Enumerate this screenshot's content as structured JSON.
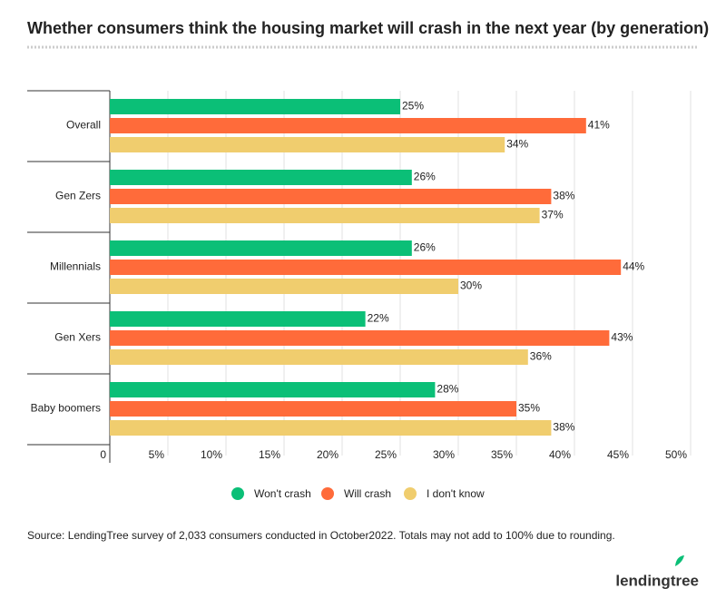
{
  "chart_data": {
    "type": "bar",
    "orientation": "horizontal",
    "title": "Whether consumers think the housing market will crash in the next year (by generation)",
    "categories": [
      "Overall",
      "Gen Zers",
      "Millennials",
      "Gen Xers",
      "Baby boomers"
    ],
    "series": [
      {
        "name": "Won't crash",
        "color": "#0bbf77",
        "values": [
          25,
          26,
          26,
          22,
          28
        ],
        "value_labels": [
          "25%",
          "26%",
          "26%",
          "22%",
          "28%"
        ]
      },
      {
        "name": "Will crash",
        "color": "#ff6b3a",
        "values": [
          41,
          38,
          44,
          43,
          35
        ],
        "value_labels": [
          "41%",
          "38%",
          "44%",
          "43%",
          "35%"
        ]
      },
      {
        "name": "I don't know",
        "color": "#f0cd6e",
        "values": [
          34,
          37,
          30,
          36,
          38
        ],
        "value_labels": [
          "34%",
          "37%",
          "30%",
          "36%",
          "38%"
        ]
      }
    ],
    "xlim": [
      0,
      50
    ],
    "xticks": [
      0,
      {
        "value": 5,
        "label": "5%"
      },
      {
        "value": 10,
        "label": "10%"
      },
      {
        "value": 15,
        "label": "15%"
      },
      {
        "value": 20,
        "label": "20%"
      },
      {
        "value": 25,
        "label": "25%"
      },
      {
        "value": 30,
        "label": "30%"
      },
      {
        "value": 35,
        "label": "35%"
      },
      {
        "value": 40,
        "label": "40%"
      },
      {
        "value": 45,
        "label": "45%"
      },
      {
        "value": 50,
        "label": "50%"
      }
    ],
    "grid": true,
    "legend": "bottom",
    "source": "Source: LendingTree survey of 2,033 consumers conducted in October2022. Totals may not add to 100% due to rounding.",
    "brand": "lendingtree"
  }
}
